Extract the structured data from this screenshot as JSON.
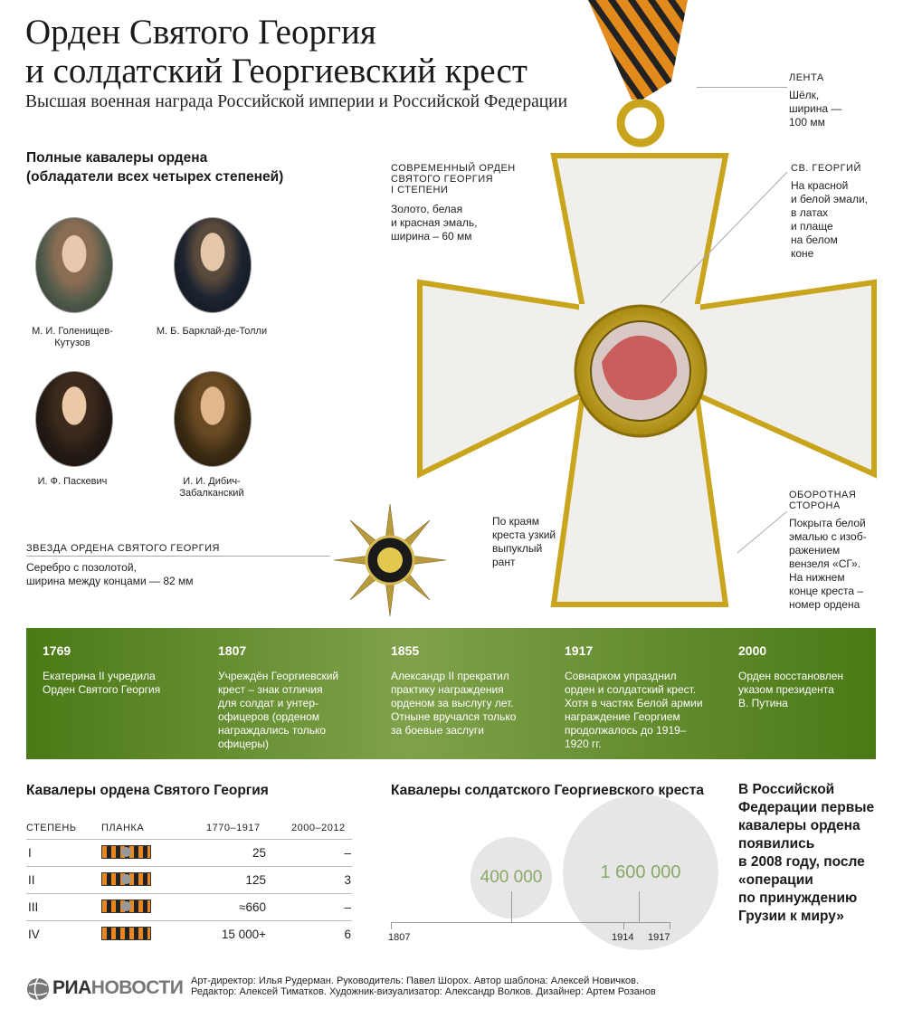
{
  "title": {
    "line1": "Орден Святого Георгия",
    "line2": "и солдатский Георгиевский крест",
    "subtitle": "Высшая военная награда Российской империи и Российской Федерации"
  },
  "full_knights": {
    "heading_line1": "Полные кавалеры ордена",
    "heading_line2": "(обладатели всех четырех степеней)",
    "people": [
      {
        "name_line1": "М. И. Голенищев-",
        "name_line2": "Кутузов"
      },
      {
        "name_line1": "М. Б. Барклай-де-Толли",
        "name_line2": ""
      },
      {
        "name_line1": "И. Ф. Паскевич",
        "name_line2": ""
      },
      {
        "name_line1": "И. И. Дибич-",
        "name_line2": "Забалканский"
      }
    ]
  },
  "star": {
    "heading": "ЗВЕЗДА ОРДЕНА СВЯТОГО ГЕОРГИЯ",
    "text_line1": "Серебро с позолотой,",
    "text_line2": "ширина между концами — 82 мм"
  },
  "cross_notes": {
    "ribbon_head": "ЛЕНТА",
    "ribbon_text": [
      "Шёлк,",
      "ширина —",
      "100 мм"
    ],
    "modern_head": [
      "СОВРЕМЕННЫЙ ОРДЕН",
      "СВЯТОГО ГЕОРГИЯ",
      "I СТЕПЕНИ"
    ],
    "modern_text": [
      "Золото, белая",
      "и красная эмаль,",
      "ширина – 60 мм"
    ],
    "george_head": "СВ. ГЕОРГИЙ",
    "george_text": [
      "На красной",
      "и белой эмали,",
      "в латах",
      "и плаще",
      "на белом",
      "коне"
    ],
    "edge_text": [
      "По краям",
      "креста узкий",
      "выпуклый",
      "рант"
    ],
    "reverse_head": [
      "ОБОРОТНАЯ",
      "СТОРОНА"
    ],
    "reverse_text": [
      "Покрыта белой",
      "эмалью с изоб-",
      "ражением",
      "вензеля «СГ».",
      "На нижнем",
      "конце креста –",
      "номер ордена"
    ]
  },
  "timeline": [
    {
      "year": "1769",
      "text": [
        "Екатерина II учредила",
        "Орден Святого Георгия"
      ]
    },
    {
      "year": "1807",
      "text": [
        "Учреждён Георгиевский",
        "крест – знак отличия",
        "для солдат и унтер-",
        "офицеров (орденом",
        "награждались только",
        "офицеры)"
      ]
    },
    {
      "year": "1855",
      "text": [
        "Александр II прекратил",
        "практику награждения",
        "орденом за выслугу лет.",
        "Отныне вручался только",
        "за боевые заслуги"
      ]
    },
    {
      "year": "1917",
      "text": [
        "Совнарком упразднил",
        "орден и солдатский крест.",
        "Хотя в частях Белой армии",
        "награждение Георгием",
        "продолжалось до 1919–",
        "1920 гг."
      ]
    },
    {
      "year": "2000",
      "text": [
        "Орден восстановлен",
        "указом президента",
        "В. Путина"
      ]
    }
  ],
  "table": {
    "heading": "Кавалеры ордена Святого Георгия",
    "columns": [
      "СТЕПЕНЬ",
      "ПЛАНКА",
      "1770–1917",
      "2000–2012"
    ],
    "rows": [
      {
        "degree": "I",
        "p1": "25",
        "p2": "–"
      },
      {
        "degree": "II",
        "p1": "125",
        "p2": "3"
      },
      {
        "degree": "III",
        "p1": "≈660",
        "p2": "–"
      },
      {
        "degree": "IV",
        "p1": "15 000+",
        "p2": "6"
      }
    ]
  },
  "soldier_cross": {
    "heading": "Кавалеры солдатского Георгиевского креста",
    "bubble1": "400 000",
    "bubble2": "1 600 000",
    "axis_labels": [
      "1807",
      "1914",
      "1917"
    ]
  },
  "chart_data": {
    "type": "bubble",
    "title": "Кавалеры солдатского Георгиевского креста",
    "x_ticks": [
      "1807",
      "1914",
      "1917"
    ],
    "series": [
      {
        "values": [
          400000
        ]
      },
      {
        "values": [
          1600000
        ]
      }
    ]
  },
  "side_note": [
    "В Российской",
    "Федерации первые",
    "кавалеры ордена",
    "появились",
    "в 2008 году, после",
    "«операции",
    "по принуждению",
    "Грузии к миру»"
  ],
  "footer": {
    "logo_part1": "РИА",
    "logo_part2": "НОВОСТИ",
    "credits_line1": "Арт-директор: Илья Рудерман. Руководитель: Павел Шорох. Автор шаблона: Алексей Новичков.",
    "credits_line2": "Редактор: Алексей Тиматков. Художник-визуализатор: Александр Волков. Дизайнер: Артем Розанов"
  },
  "colors": {
    "band_dark": "#4a7a16",
    "band_light": "#7fa14a",
    "bubble_text": "#8aa867",
    "ribbon_orange": "#e8861f"
  }
}
